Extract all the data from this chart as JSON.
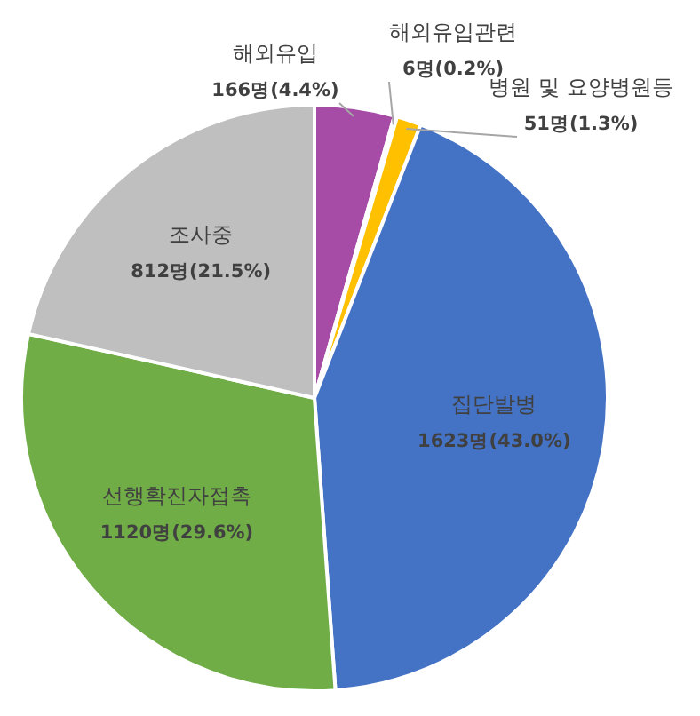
{
  "chart_data": {
    "type": "pie",
    "categories": [
      "해외유입",
      "해외유입관련",
      "병원 및 요양병원등",
      "집단발병",
      "선행확진자접촉",
      "조사중"
    ],
    "values": [
      166,
      6,
      51,
      1623,
      1120,
      812
    ],
    "value_labels": [
      "166명(4.4%)",
      "6명(0.2%)",
      "51명(1.3%)",
      "1623명(43.0%)",
      "1120명(29.6%)",
      "812명(21.5%)"
    ],
    "colors": [
      "#a64ca6",
      "#ed7d31",
      "#ffc000",
      "#4472c4",
      "#70ad47",
      "#bfbfbf"
    ]
  }
}
